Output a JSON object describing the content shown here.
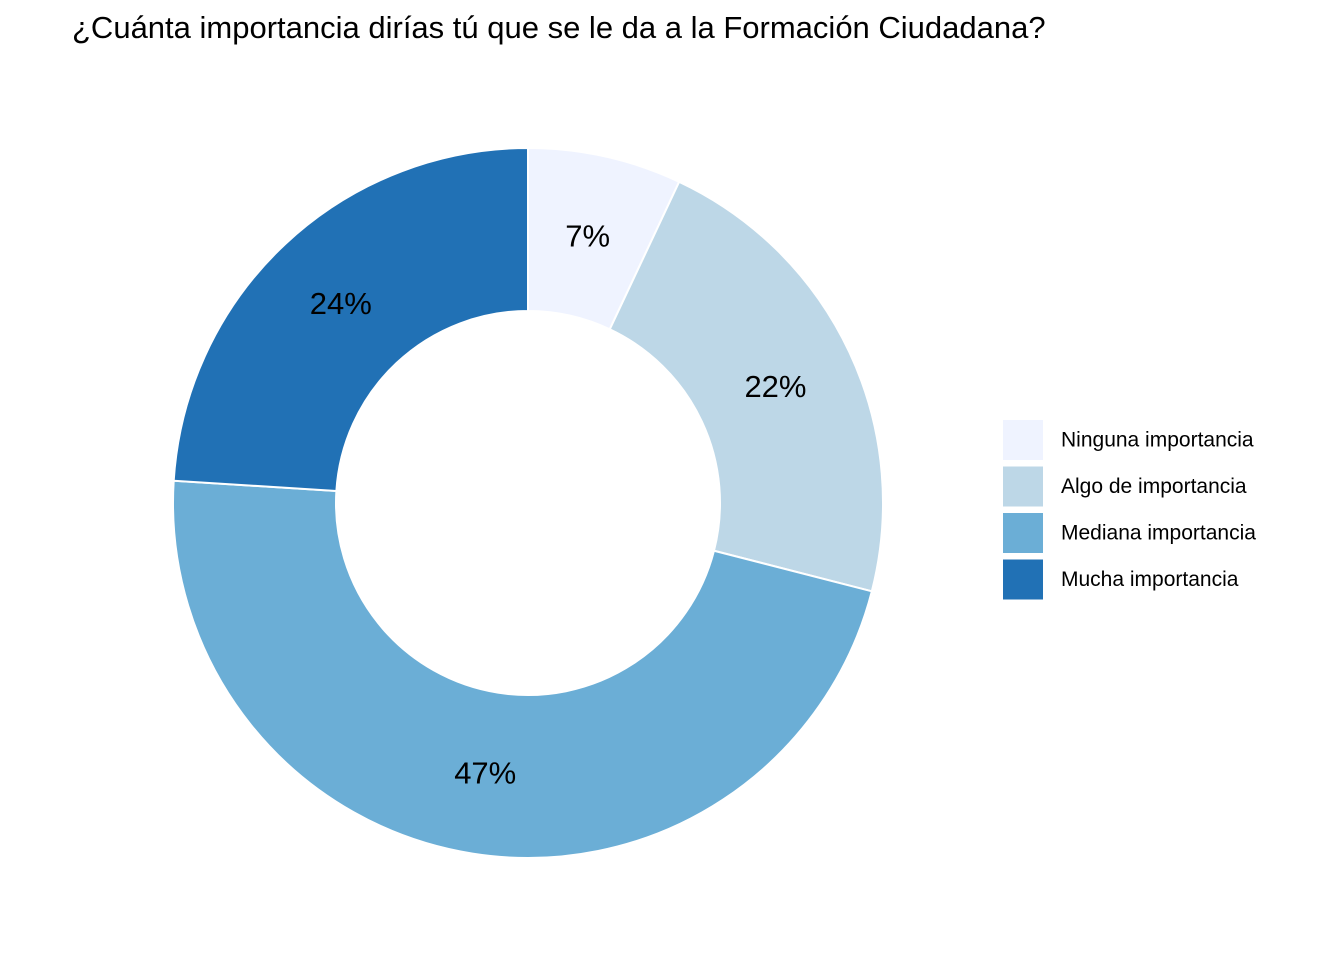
{
  "chart_data": {
    "type": "pie",
    "donut": true,
    "title": "¿Cuánta importancia dirías tú que se le da a la Formación Ciudadana?",
    "categories": [
      "Ninguna importancia",
      "Algo de importancia",
      "Mediana importancia",
      "Mucha importancia"
    ],
    "values": [
      7,
      22,
      47,
      24
    ],
    "labels": [
      "7%",
      "22%",
      "47%",
      "24%"
    ],
    "colors": [
      "#eff3ff",
      "#bdd7e7",
      "#6baed6",
      "#2171b5"
    ],
    "legend_position": "right",
    "start": "top",
    "direction": "clockwise"
  }
}
